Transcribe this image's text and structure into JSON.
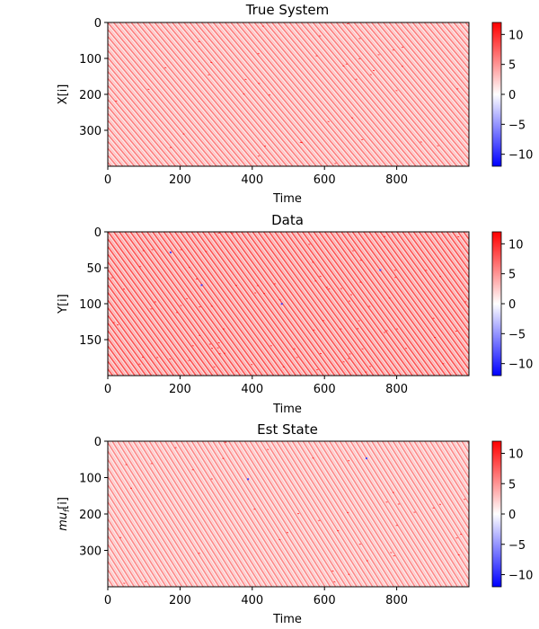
{
  "colormap": {
    "name": "bwr",
    "low": "#0000ff",
    "mid": "#ffffff",
    "high": "#ff0000",
    "range": [
      -12,
      12
    ]
  },
  "chart_data": [
    {
      "type": "heatmap",
      "title": "True System",
      "xlabel": "Time",
      "ylabel": "X[i]",
      "xlim": [
        0,
        1000
      ],
      "ylim": [
        400,
        0
      ],
      "y_inverted": true,
      "xticks": [
        0,
        200,
        400,
        600,
        800
      ],
      "yticks": [
        0,
        100,
        200,
        300
      ],
      "colorbar": {
        "range": [
          -12,
          12
        ],
        "ticks": [
          10,
          5,
          0,
          -5,
          -10
        ]
      },
      "texture": {
        "dominant_sign": "positive",
        "typical_range": [
          0,
          10
        ],
        "isolated_negative_spots": false
      }
    },
    {
      "type": "heatmap",
      "title": "Data",
      "xlabel": "Time",
      "ylabel": "Y[i]",
      "xlim": [
        0,
        1000
      ],
      "ylim": [
        200,
        0
      ],
      "y_inverted": true,
      "xticks": [
        0,
        200,
        400,
        600,
        800
      ],
      "yticks": [
        0,
        50,
        100,
        150
      ],
      "colorbar": {
        "range": [
          -12,
          12
        ],
        "ticks": [
          10,
          5,
          0,
          -5,
          -10
        ]
      },
      "texture": {
        "dominant_sign": "positive",
        "typical_range": [
          0,
          12
        ],
        "isolated_negative_spots": true
      }
    },
    {
      "type": "heatmap",
      "title": "Est State",
      "xlabel": "Time",
      "ylabel": "mu_f[i]",
      "ylabel_main": "mu",
      "ylabel_sub": "f",
      "ylabel_tail": "[i]",
      "xlim": [
        0,
        1000
      ],
      "ylim": [
        400,
        0
      ],
      "y_inverted": true,
      "xticks": [
        0,
        200,
        400,
        600,
        800
      ],
      "yticks": [
        0,
        100,
        200,
        300
      ],
      "colorbar": {
        "range": [
          -12,
          12
        ],
        "ticks": [
          10,
          5,
          0,
          -5,
          -10
        ]
      },
      "texture": {
        "dominant_sign": "positive",
        "typical_range": [
          0,
          8
        ],
        "isolated_negative_spots": true
      }
    }
  ]
}
